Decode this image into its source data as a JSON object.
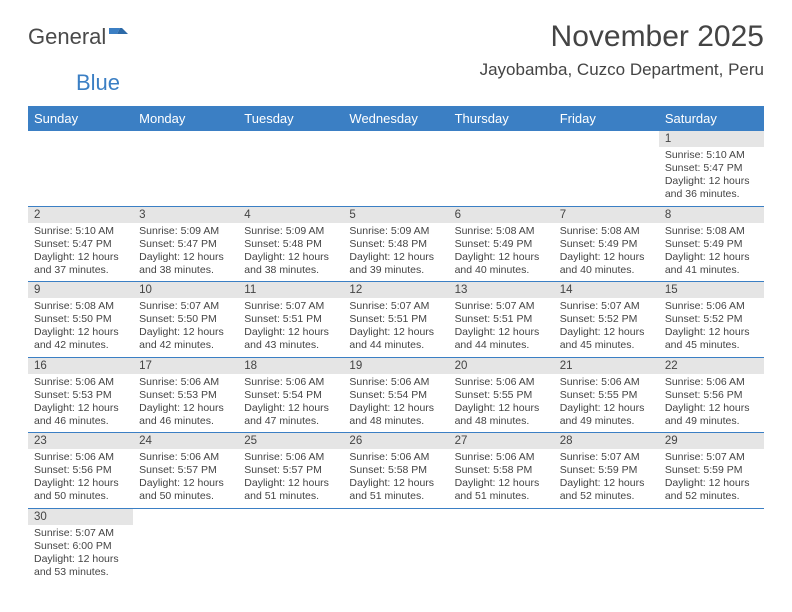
{
  "logo": {
    "text1": "General",
    "text2": "Blue"
  },
  "title": "November 2025",
  "location": "Jayobamba, Cuzco Department, Peru",
  "colors": {
    "header_bg": "#3b7fc4",
    "header_text": "#ffffff",
    "divider": "#3b7fc4",
    "daynum_bg": "#e5e5e5",
    "text": "#444444",
    "background": "#ffffff"
  },
  "daysOfWeek": [
    "Sunday",
    "Monday",
    "Tuesday",
    "Wednesday",
    "Thursday",
    "Friday",
    "Saturday"
  ],
  "weeks": [
    [
      {
        "n": "",
        "sr": "",
        "ss": "",
        "dl": ""
      },
      {
        "n": "",
        "sr": "",
        "ss": "",
        "dl": ""
      },
      {
        "n": "",
        "sr": "",
        "ss": "",
        "dl": ""
      },
      {
        "n": "",
        "sr": "",
        "ss": "",
        "dl": ""
      },
      {
        "n": "",
        "sr": "",
        "ss": "",
        "dl": ""
      },
      {
        "n": "",
        "sr": "",
        "ss": "",
        "dl": ""
      },
      {
        "n": "1",
        "sr": "Sunrise: 5:10 AM",
        "ss": "Sunset: 5:47 PM",
        "dl": "Daylight: 12 hours and 36 minutes."
      }
    ],
    [
      {
        "n": "2",
        "sr": "Sunrise: 5:10 AM",
        "ss": "Sunset: 5:47 PM",
        "dl": "Daylight: 12 hours and 37 minutes."
      },
      {
        "n": "3",
        "sr": "Sunrise: 5:09 AM",
        "ss": "Sunset: 5:47 PM",
        "dl": "Daylight: 12 hours and 38 minutes."
      },
      {
        "n": "4",
        "sr": "Sunrise: 5:09 AM",
        "ss": "Sunset: 5:48 PM",
        "dl": "Daylight: 12 hours and 38 minutes."
      },
      {
        "n": "5",
        "sr": "Sunrise: 5:09 AM",
        "ss": "Sunset: 5:48 PM",
        "dl": "Daylight: 12 hours and 39 minutes."
      },
      {
        "n": "6",
        "sr": "Sunrise: 5:08 AM",
        "ss": "Sunset: 5:49 PM",
        "dl": "Daylight: 12 hours and 40 minutes."
      },
      {
        "n": "7",
        "sr": "Sunrise: 5:08 AM",
        "ss": "Sunset: 5:49 PM",
        "dl": "Daylight: 12 hours and 40 minutes."
      },
      {
        "n": "8",
        "sr": "Sunrise: 5:08 AM",
        "ss": "Sunset: 5:49 PM",
        "dl": "Daylight: 12 hours and 41 minutes."
      }
    ],
    [
      {
        "n": "9",
        "sr": "Sunrise: 5:08 AM",
        "ss": "Sunset: 5:50 PM",
        "dl": "Daylight: 12 hours and 42 minutes."
      },
      {
        "n": "10",
        "sr": "Sunrise: 5:07 AM",
        "ss": "Sunset: 5:50 PM",
        "dl": "Daylight: 12 hours and 42 minutes."
      },
      {
        "n": "11",
        "sr": "Sunrise: 5:07 AM",
        "ss": "Sunset: 5:51 PM",
        "dl": "Daylight: 12 hours and 43 minutes."
      },
      {
        "n": "12",
        "sr": "Sunrise: 5:07 AM",
        "ss": "Sunset: 5:51 PM",
        "dl": "Daylight: 12 hours and 44 minutes."
      },
      {
        "n": "13",
        "sr": "Sunrise: 5:07 AM",
        "ss": "Sunset: 5:51 PM",
        "dl": "Daylight: 12 hours and 44 minutes."
      },
      {
        "n": "14",
        "sr": "Sunrise: 5:07 AM",
        "ss": "Sunset: 5:52 PM",
        "dl": "Daylight: 12 hours and 45 minutes."
      },
      {
        "n": "15",
        "sr": "Sunrise: 5:06 AM",
        "ss": "Sunset: 5:52 PM",
        "dl": "Daylight: 12 hours and 45 minutes."
      }
    ],
    [
      {
        "n": "16",
        "sr": "Sunrise: 5:06 AM",
        "ss": "Sunset: 5:53 PM",
        "dl": "Daylight: 12 hours and 46 minutes."
      },
      {
        "n": "17",
        "sr": "Sunrise: 5:06 AM",
        "ss": "Sunset: 5:53 PM",
        "dl": "Daylight: 12 hours and 46 minutes."
      },
      {
        "n": "18",
        "sr": "Sunrise: 5:06 AM",
        "ss": "Sunset: 5:54 PM",
        "dl": "Daylight: 12 hours and 47 minutes."
      },
      {
        "n": "19",
        "sr": "Sunrise: 5:06 AM",
        "ss": "Sunset: 5:54 PM",
        "dl": "Daylight: 12 hours and 48 minutes."
      },
      {
        "n": "20",
        "sr": "Sunrise: 5:06 AM",
        "ss": "Sunset: 5:55 PM",
        "dl": "Daylight: 12 hours and 48 minutes."
      },
      {
        "n": "21",
        "sr": "Sunrise: 5:06 AM",
        "ss": "Sunset: 5:55 PM",
        "dl": "Daylight: 12 hours and 49 minutes."
      },
      {
        "n": "22",
        "sr": "Sunrise: 5:06 AM",
        "ss": "Sunset: 5:56 PM",
        "dl": "Daylight: 12 hours and 49 minutes."
      }
    ],
    [
      {
        "n": "23",
        "sr": "Sunrise: 5:06 AM",
        "ss": "Sunset: 5:56 PM",
        "dl": "Daylight: 12 hours and 50 minutes."
      },
      {
        "n": "24",
        "sr": "Sunrise: 5:06 AM",
        "ss": "Sunset: 5:57 PM",
        "dl": "Daylight: 12 hours and 50 minutes."
      },
      {
        "n": "25",
        "sr": "Sunrise: 5:06 AM",
        "ss": "Sunset: 5:57 PM",
        "dl": "Daylight: 12 hours and 51 minutes."
      },
      {
        "n": "26",
        "sr": "Sunrise: 5:06 AM",
        "ss": "Sunset: 5:58 PM",
        "dl": "Daylight: 12 hours and 51 minutes."
      },
      {
        "n": "27",
        "sr": "Sunrise: 5:06 AM",
        "ss": "Sunset: 5:58 PM",
        "dl": "Daylight: 12 hours and 51 minutes."
      },
      {
        "n": "28",
        "sr": "Sunrise: 5:07 AM",
        "ss": "Sunset: 5:59 PM",
        "dl": "Daylight: 12 hours and 52 minutes."
      },
      {
        "n": "29",
        "sr": "Sunrise: 5:07 AM",
        "ss": "Sunset: 5:59 PM",
        "dl": "Daylight: 12 hours and 52 minutes."
      }
    ],
    [
      {
        "n": "30",
        "sr": "Sunrise: 5:07 AM",
        "ss": "Sunset: 6:00 PM",
        "dl": "Daylight: 12 hours and 53 minutes."
      },
      {
        "n": "",
        "sr": "",
        "ss": "",
        "dl": ""
      },
      {
        "n": "",
        "sr": "",
        "ss": "",
        "dl": ""
      },
      {
        "n": "",
        "sr": "",
        "ss": "",
        "dl": ""
      },
      {
        "n": "",
        "sr": "",
        "ss": "",
        "dl": ""
      },
      {
        "n": "",
        "sr": "",
        "ss": "",
        "dl": ""
      },
      {
        "n": "",
        "sr": "",
        "ss": "",
        "dl": ""
      }
    ]
  ]
}
